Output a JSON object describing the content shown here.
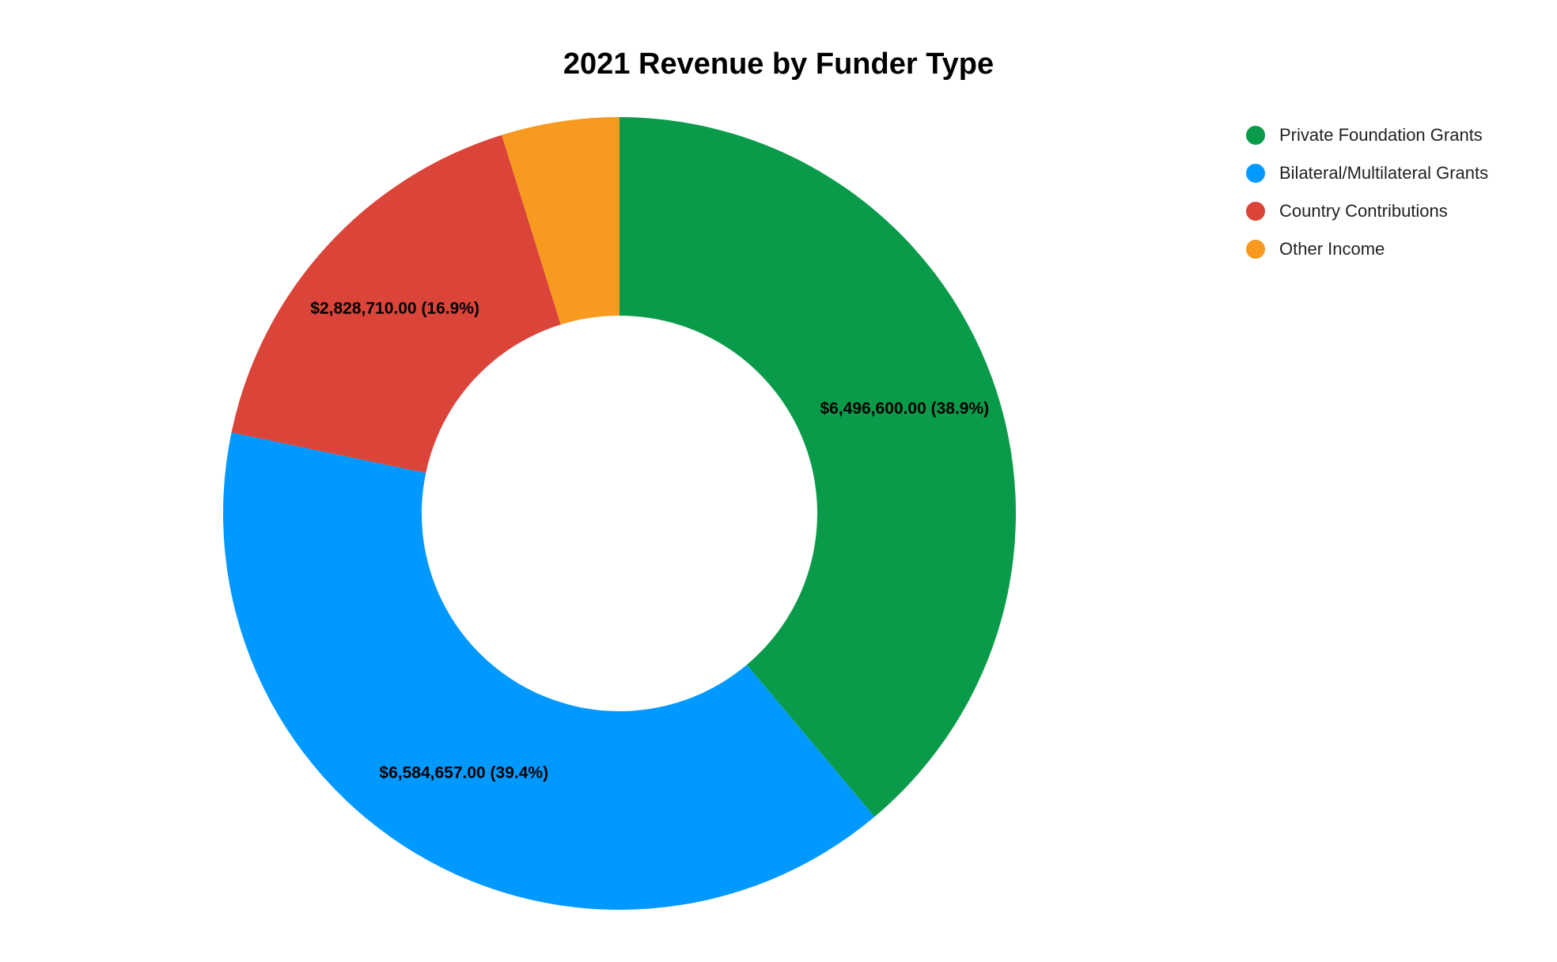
{
  "chart_data": {
    "type": "pie",
    "variant": "donut",
    "title": "2021 Revenue by Funder Type",
    "legend_position": "top-right",
    "slices": [
      {
        "name": "Private Foundation Grants",
        "value": 6496600.0,
        "percent": 38.9,
        "label": "$6,496,600.00 (38.9%)",
        "color": "#0a9b4a"
      },
      {
        "name": "Bilateral/Multilateral Grants",
        "value": 6584657.0,
        "percent": 39.4,
        "label": "$6,584,657.00 (39.4%)",
        "color": "#0299ff"
      },
      {
        "name": "Country Contributions",
        "value": 2828710.0,
        "percent": 16.9,
        "label": "$2,828,710.00 (16.9%)",
        "color": "#db4439"
      },
      {
        "name": "Other Income",
        "value": 802000,
        "percent": 4.8,
        "label": "",
        "color": "#f89a1f"
      }
    ]
  }
}
